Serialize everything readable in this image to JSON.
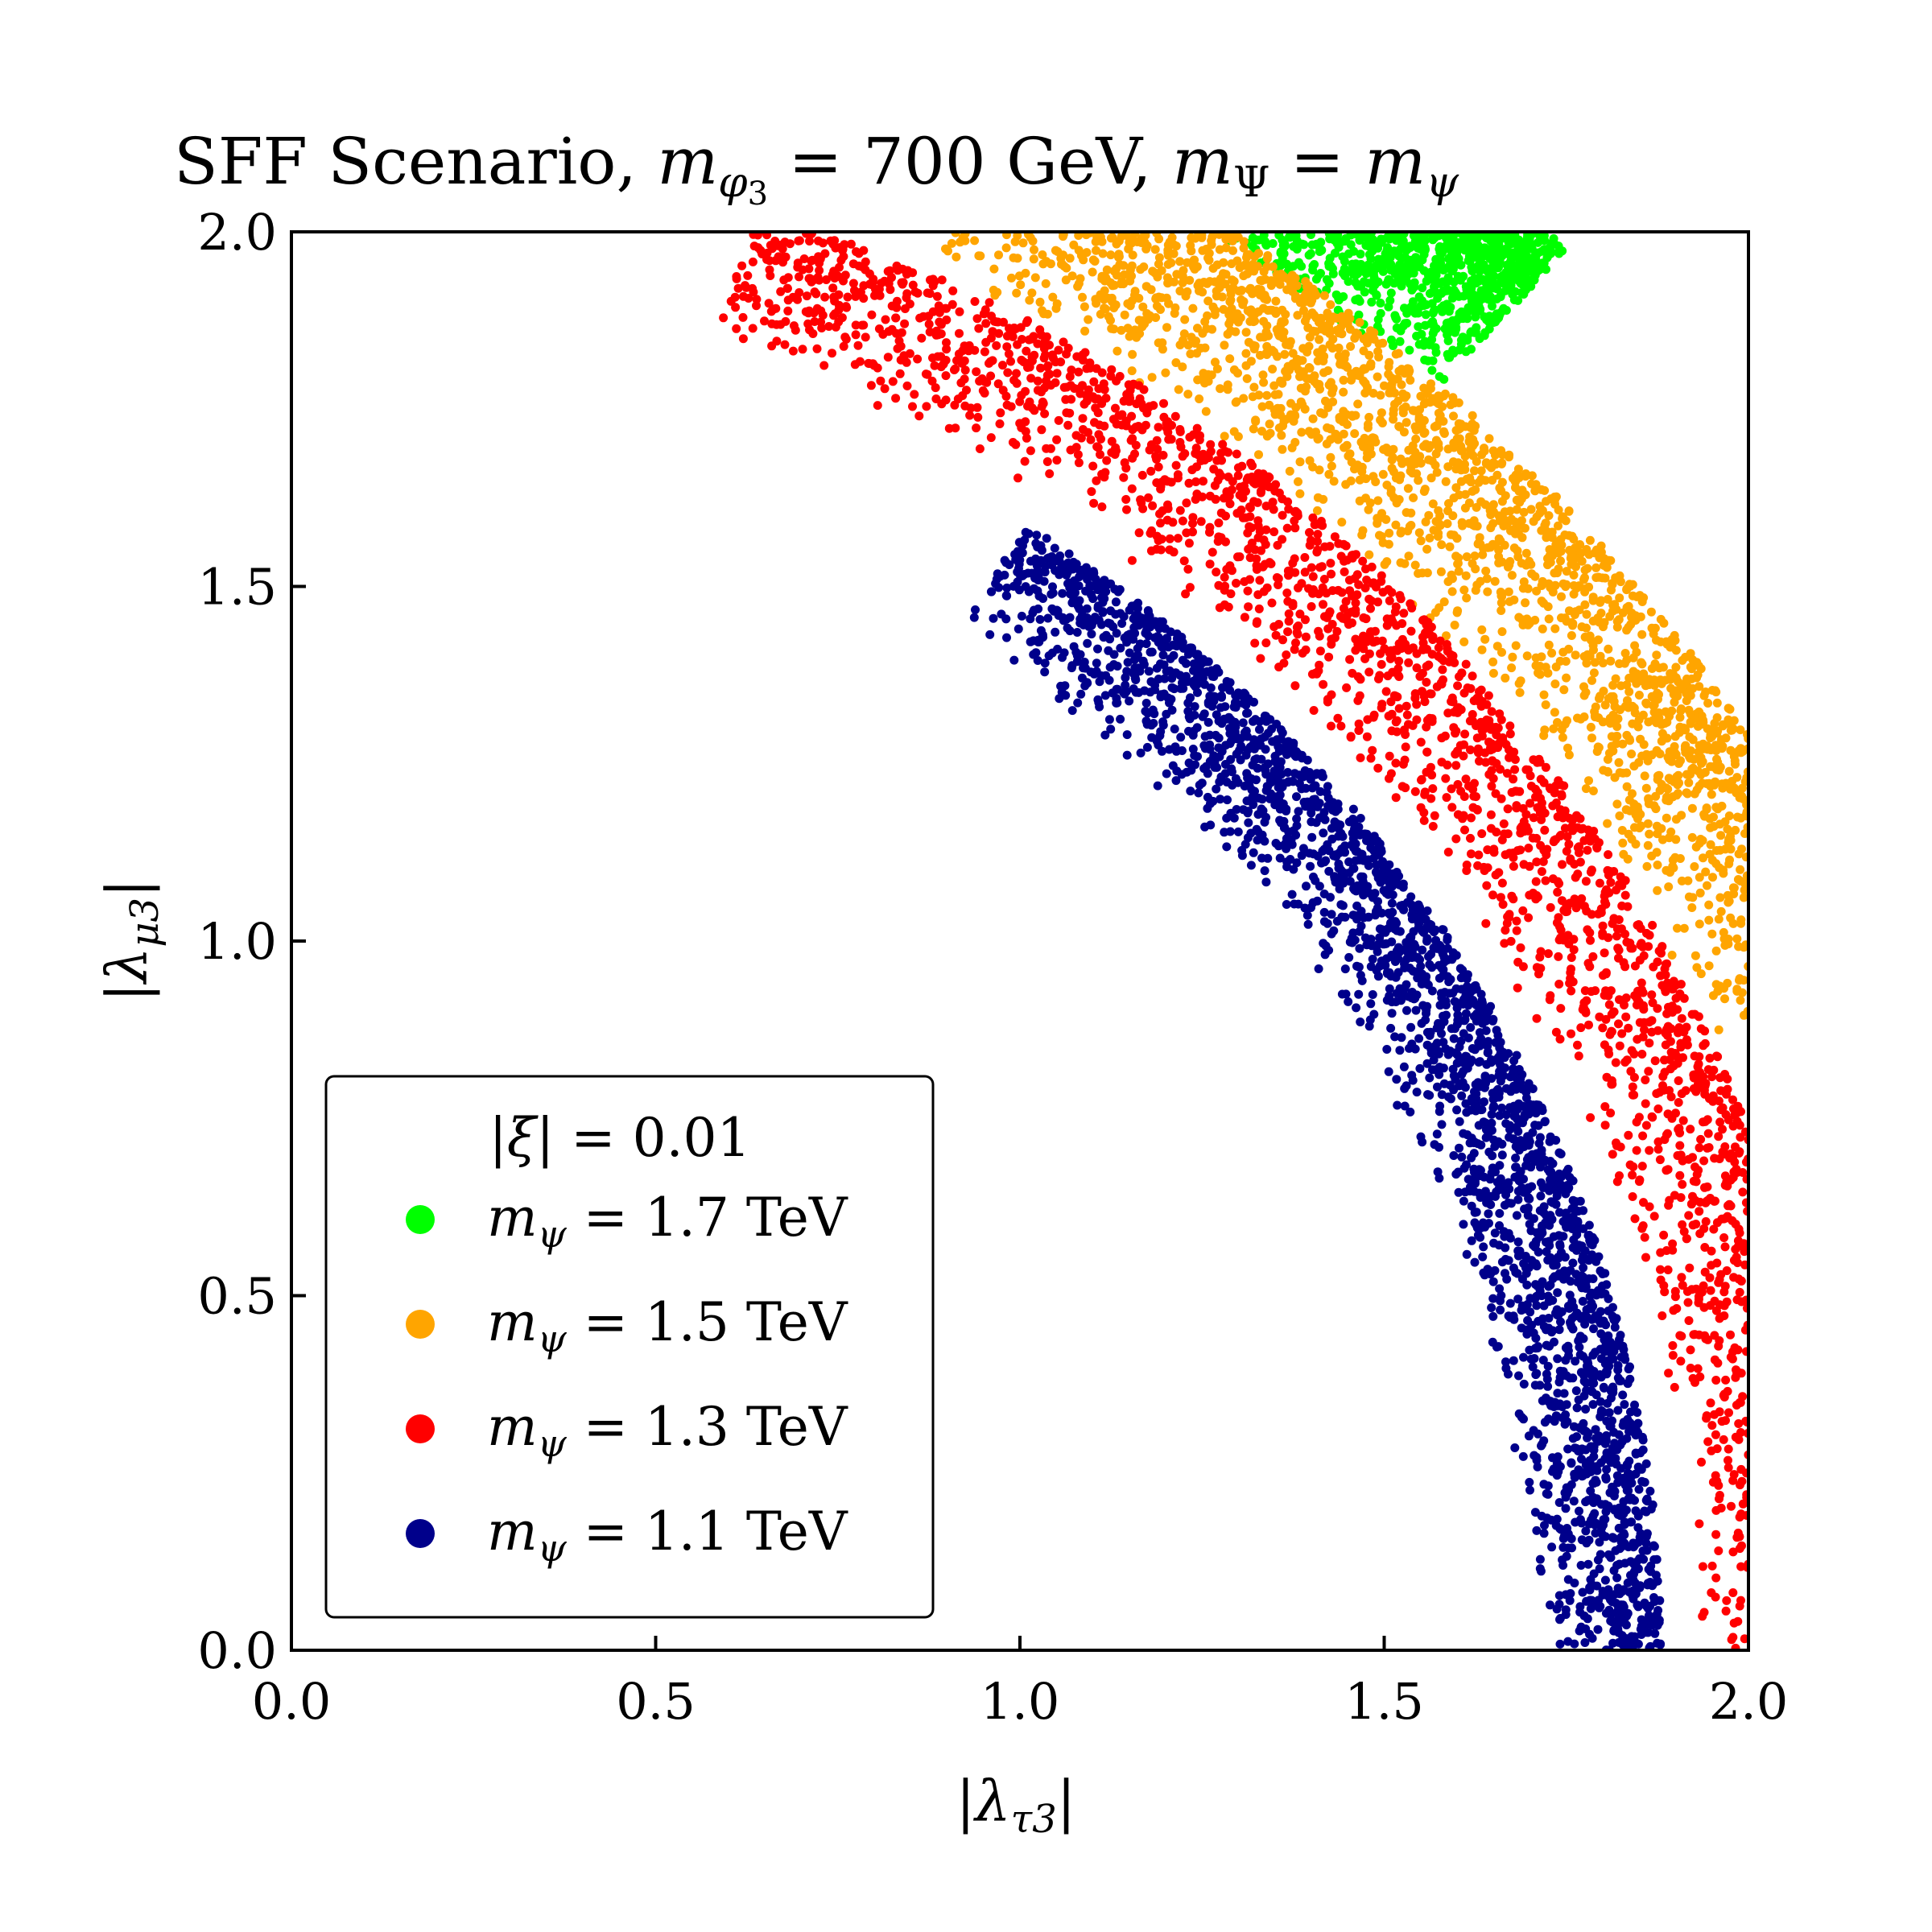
{
  "chart_data": {
    "type": "scatter",
    "title": "SFF Scenario, mφ3 = 700 GeV, mΨ = mψ",
    "title_parts": {
      "lead": "SFF Scenario, ",
      "m": "m",
      "phi_sub": "φ",
      "phi_subsub": "3",
      "eq1": " = 700 GeV, ",
      "psi_big_sub": "Ψ",
      "eq2": " = ",
      "psi_sub": "ψ"
    },
    "xlabel": "|λτ3|",
    "xlabel_parts": {
      "bar": "|",
      "lambda": "λ",
      "sub": "τ3"
    },
    "ylabel": "|λμ3|",
    "ylabel_parts": {
      "bar": "|",
      "lambda": "λ",
      "sub": "μ3"
    },
    "xlim": [
      0.0,
      2.0
    ],
    "ylim": [
      0.0,
      2.0
    ],
    "xticks": [
      "0.0",
      "0.5",
      "1.0",
      "1.5",
      "2.0"
    ],
    "yticks": [
      "0.0",
      "0.5",
      "1.0",
      "1.5",
      "2.0"
    ],
    "grid": false,
    "legend": {
      "placement": "lower-left",
      "title": "|ξ| = 0.01",
      "title_parts": {
        "bar": "|",
        "xi": "ξ",
        "rest": "| = 0.01"
      }
    },
    "series": [
      {
        "name": "mψ = 1.7 TeV",
        "label_m": "m",
        "label_sub": "ψ",
        "label_rest": " = 1.7 TeV",
        "color": "#00ff00",
        "r_min": 2.36,
        "r_max": 2.64,
        "theta_min_deg": 48.5,
        "theta_max_deg": 60
      },
      {
        "name": "mψ = 1.5 TeV",
        "label_m": "m",
        "label_sub": "ψ",
        "label_rest": " = 1.5 TeV",
        "color": "#ffa500",
        "r_min": 2.13,
        "r_max": 2.38,
        "theta_min_deg": 24,
        "theta_max_deg": 66
      },
      {
        "name": "mψ = 1.3 TeV",
        "label_m": "m",
        "label_sub": "ψ",
        "label_rest": " = 1.3 TeV",
        "color": "#ff0000",
        "r_min": 1.92,
        "r_max": 2.13,
        "theta_min_deg": 0,
        "theta_max_deg": 72.5
      },
      {
        "name": "mψ = 1.1 TeV",
        "label_m": "m",
        "label_sub": "ψ",
        "label_rest": " = 1.1 TeV",
        "color": "#00008b",
        "r_min": 1.7,
        "r_max": 1.88,
        "theta_min_deg": 0,
        "theta_max_deg": 57.5
      }
    ]
  }
}
